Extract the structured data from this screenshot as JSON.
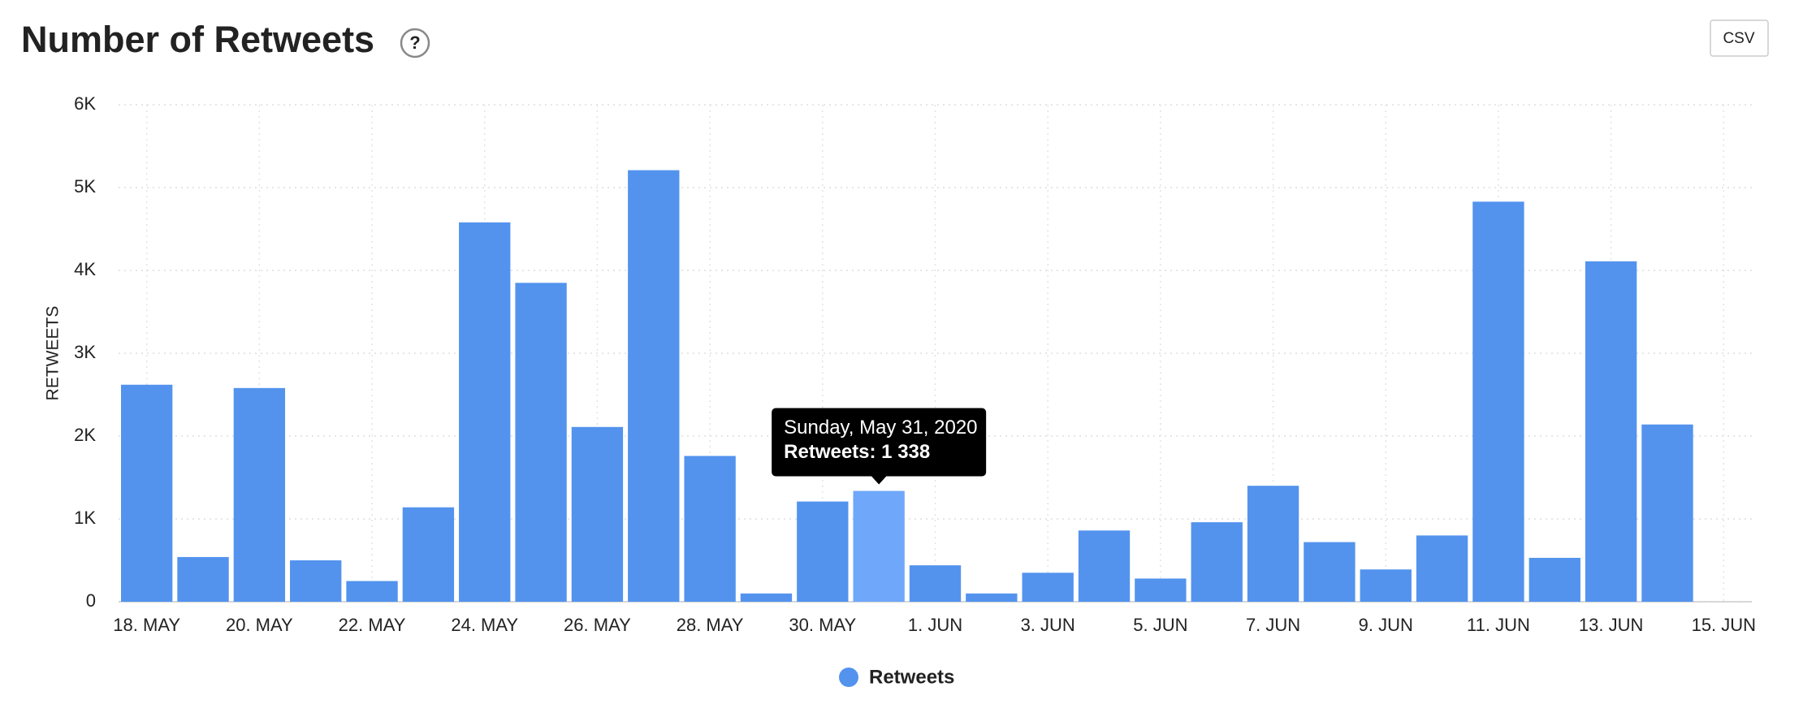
{
  "chart_data": {
    "type": "bar",
    "title": "Number of Retweets",
    "help_icon": "?",
    "button": "CSV",
    "y_label": "RETWEETS",
    "categories": [
      "18. MAY",
      null,
      "20. MAY",
      null,
      "22. MAY",
      null,
      "24. MAY",
      null,
      "26. MAY",
      null,
      "28. MAY",
      null,
      "30. MAY",
      null,
      "1. JUN",
      null,
      "3. JUN",
      null,
      "5. JUN",
      null,
      "7. JUN",
      null,
      "9. JUN",
      null,
      "11. JUN",
      null,
      "13. JUN",
      null,
      "15. JUN"
    ],
    "series": [
      {
        "name": "Retweets",
        "color": "#5393ee",
        "values": [
          2620,
          540,
          2580,
          500,
          250,
          1140,
          4580,
          3850,
          2110,
          5210,
          1760,
          100,
          1210,
          1338,
          440,
          100,
          350,
          860,
          280,
          960,
          1400,
          720,
          390,
          800,
          4830,
          530,
          4110,
          2140,
          null
        ]
      }
    ],
    "highlight_index": 13,
    "highlight_color": "#6fa8fb",
    "tooltip": {
      "date": "Sunday, May 31, 2020",
      "text": "Retweets: 1 338"
    },
    "ylim": [
      0,
      6000
    ],
    "yticks": [
      0,
      {
        "value": 1000,
        "label": "1K"
      },
      {
        "value": 2000,
        "label": "2K"
      },
      {
        "value": 3000,
        "label": "3K"
      },
      {
        "value": 4000,
        "label": "4K"
      },
      {
        "value": 5000,
        "label": "5K"
      },
      {
        "value": 6000,
        "label": "6K"
      }
    ],
    "grid": true,
    "legend": "bottom"
  }
}
